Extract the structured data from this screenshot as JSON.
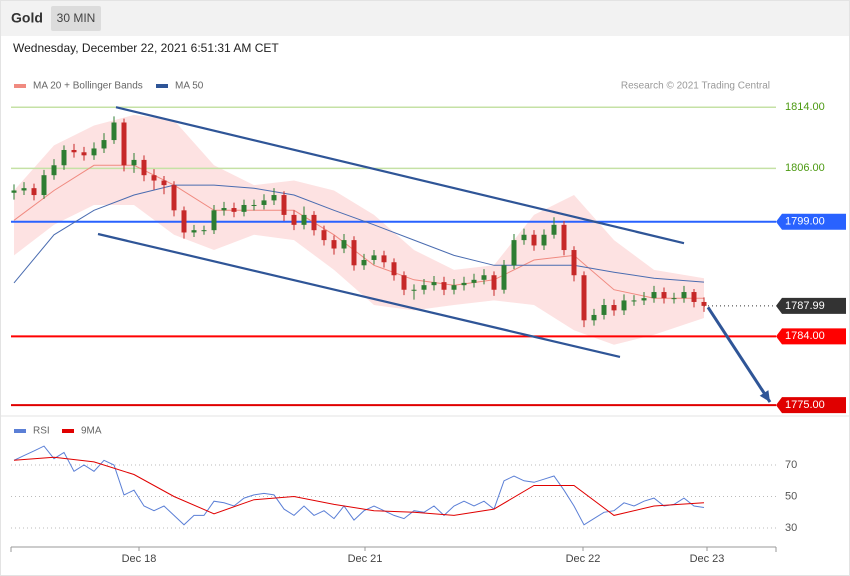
{
  "header": {
    "title": "Gold",
    "interval": "30 MIN",
    "timestamp": "Wednesday, December 22, 2021 6:51:31 AM CET"
  },
  "chart_data": [
    {
      "type": "candlestick",
      "credit": "Research © 2021 Trading Central",
      "up_color": "#2e7d32",
      "down_color": "#c62828",
      "open": [
        1802.8,
        1803.1,
        1803.4,
        1802.5,
        1805.1,
        1806.4,
        1808.4,
        1808.1,
        1807.7,
        1808.6,
        1809.7,
        1812.0,
        1806.4,
        1807.1,
        1805.1,
        1804.4,
        1803.8,
        1800.5,
        1797.6,
        1797.9,
        1797.9,
        1800.5,
        1800.8,
        1800.3,
        1801.2,
        1801.2,
        1801.8,
        1802.5,
        1799.9,
        1798.6,
        1799.9,
        1797.9,
        1796.6,
        1795.5,
        1796.6,
        1793.3,
        1794.0,
        1794.6,
        1793.7,
        1792.0,
        1790.1,
        1790.1,
        1790.7,
        1791.1,
        1790.1,
        1790.7,
        1791.0,
        1791.4,
        1792.0,
        1790.1,
        1793.3,
        1796.6,
        1797.3,
        1795.9,
        1797.3,
        1798.6,
        1795.3,
        1792.0,
        1786.1,
        1786.8,
        1788.1,
        1787.4,
        1788.7,
        1788.7,
        1789.0,
        1789.8,
        1789.0,
        1789.0,
        1789.8,
        1788.5
      ],
      "high": [
        1803.9,
        1804.2,
        1804.0,
        1805.8,
        1807.2,
        1809.0,
        1809.2,
        1808.8,
        1809.4,
        1810.6,
        1812.8,
        1812.5,
        1808.0,
        1807.7,
        1805.9,
        1805.0,
        1804.3,
        1801.0,
        1798.6,
        1798.5,
        1801.2,
        1801.6,
        1801.5,
        1801.9,
        1801.9,
        1802.6,
        1803.4,
        1803.0,
        1800.5,
        1801.0,
        1800.4,
        1798.5,
        1797.2,
        1797.4,
        1797.1,
        1794.8,
        1795.3,
        1795.2,
        1794.2,
        1792.5,
        1790.8,
        1791.5,
        1791.9,
        1791.8,
        1791.5,
        1791.8,
        1792.2,
        1792.8,
        1792.5,
        1794.0,
        1797.4,
        1798.1,
        1797.9,
        1798.0,
        1799.6,
        1799.1,
        1795.8,
        1792.5,
        1787.6,
        1788.9,
        1788.8,
        1789.5,
        1789.4,
        1789.8,
        1790.6,
        1790.4,
        1789.7,
        1790.6,
        1790.2,
        1789.1
      ],
      "low": [
        1801.9,
        1802.5,
        1801.8,
        1802.0,
        1804.5,
        1805.8,
        1807.4,
        1807.0,
        1807.1,
        1808.0,
        1809.2,
        1805.6,
        1805.4,
        1804.3,
        1803.2,
        1802.6,
        1799.7,
        1796.8,
        1797.0,
        1797.3,
        1797.4,
        1799.8,
        1799.6,
        1799.7,
        1800.5,
        1800.6,
        1801.2,
        1799.1,
        1797.9,
        1798.0,
        1797.2,
        1795.9,
        1794.7,
        1794.9,
        1792.6,
        1792.7,
        1793.4,
        1793.0,
        1791.3,
        1789.4,
        1788.8,
        1789.5,
        1790.0,
        1789.4,
        1789.5,
        1790.0,
        1790.4,
        1790.8,
        1789.3,
        1789.6,
        1792.8,
        1796.0,
        1795.2,
        1795.3,
        1796.8,
        1794.6,
        1791.2,
        1785.2,
        1785.4,
        1786.2,
        1786.7,
        1786.8,
        1788.0,
        1788.1,
        1788.4,
        1788.3,
        1788.3,
        1788.4,
        1787.8,
        1787.2
      ],
      "close": [
        1803.1,
        1803.4,
        1802.5,
        1805.1,
        1806.4,
        1808.4,
        1808.1,
        1807.7,
        1808.6,
        1809.7,
        1812.0,
        1806.4,
        1807.1,
        1805.1,
        1804.4,
        1803.8,
        1800.5,
        1797.6,
        1797.9,
        1797.9,
        1800.5,
        1800.8,
        1800.3,
        1801.2,
        1801.2,
        1801.8,
        1802.5,
        1799.9,
        1798.6,
        1799.9,
        1797.9,
        1796.6,
        1795.5,
        1796.6,
        1793.3,
        1794.0,
        1794.6,
        1793.7,
        1792.0,
        1790.1,
        1790.1,
        1790.7,
        1791.1,
        1790.1,
        1790.7,
        1791.0,
        1791.4,
        1792.0,
        1790.1,
        1793.3,
        1796.6,
        1797.3,
        1795.9,
        1797.3,
        1798.6,
        1795.3,
        1792.0,
        1786.1,
        1786.8,
        1788.1,
        1787.4,
        1788.7,
        1788.7,
        1789.0,
        1789.8,
        1789.0,
        1789.0,
        1789.8,
        1788.5,
        1787.99
      ],
      "series": [
        {
          "name": "MA 20 + Bollinger Bands",
          "color": "#f08a80",
          "band_color": "#fde2e2",
          "x": [
            0,
            4,
            8,
            12,
            16,
            20,
            24,
            28,
            32,
            36,
            40,
            44,
            48,
            52,
            56,
            60,
            64,
            69
          ],
          "values": [
            1799.2,
            1803.1,
            1806.4,
            1806.4,
            1803.8,
            1800.5,
            1800.5,
            1800.5,
            1797.3,
            1793.3,
            1791.4,
            1790.7,
            1791.4,
            1794.0,
            1794.6,
            1790.1,
            1789.0,
            1789.0
          ],
          "band_upper": [
            1803.1,
            1809.0,
            1811.6,
            1813.0,
            1812.3,
            1806.4,
            1803.8,
            1804.4,
            1803.1,
            1799.9,
            1795.3,
            1792.7,
            1793.3,
            1799.9,
            1802.5,
            1796.6,
            1792.7,
            1791.6
          ],
          "band_lower": [
            1794.6,
            1798.6,
            1801.2,
            1801.2,
            1797.3,
            1795.3,
            1797.3,
            1796.6,
            1792.7,
            1788.1,
            1787.4,
            1788.1,
            1788.7,
            1788.1,
            1784.8,
            1782.9,
            1784.2,
            1786.4
          ]
        },
        {
          "name": "MA 50",
          "color": "#4a6cb0",
          "x": [
            0,
            4,
            8,
            12,
            16,
            20,
            24,
            28,
            32,
            36,
            40,
            44,
            48,
            52,
            56,
            60,
            64,
            69
          ],
          "values": [
            1791.0,
            1797.3,
            1800.5,
            1802.5,
            1803.8,
            1803.8,
            1803.4,
            1802.5,
            1800.5,
            1798.6,
            1796.6,
            1794.6,
            1793.3,
            1793.3,
            1793.3,
            1792.4,
            1791.6,
            1791.1
          ]
        }
      ],
      "levels": [
        {
          "value": 1814,
          "label": "1814.00",
          "color": "#c5e1a5",
          "text_color": "#4c9a12",
          "boxed": false
        },
        {
          "value": 1806,
          "label": "1806.00",
          "color": "#c5e1a5",
          "text_color": "#4c9a12",
          "boxed": false
        },
        {
          "value": 1799,
          "label": "1799.00",
          "color": "#2962ff",
          "text_color": "#ffffff",
          "boxed": true
        },
        {
          "value": 1787.99,
          "label": "1787.99",
          "color": "#333333",
          "text_color": "#ffffff",
          "boxed": true,
          "dotted": true
        },
        {
          "value": 1784,
          "label": "1784.00",
          "color": "#ff0000",
          "text_color": "#ffffff",
          "boxed": true
        },
        {
          "value": 1775,
          "label": "1775.00",
          "color": "#e00000",
          "text_color": "#ffffff",
          "boxed": true
        }
      ],
      "annotations": [
        {
          "x1": 10.2,
          "y1": 1814,
          "x2": 67,
          "y2": 1796.2,
          "color": "#2f5597"
        },
        {
          "x1": 8.4,
          "y1": 1797.4,
          "x2": 60.6,
          "y2": 1781.3,
          "color": "#2f5597"
        },
        {
          "x1": 69.4,
          "y1": 1787.8,
          "x2": 75.6,
          "y2": 1775.4,
          "color": "#2f5597",
          "arrow": true
        }
      ],
      "xlim": [
        -0.3,
        76.2
      ],
      "ylim": [
        1773.7,
        1815.6
      ]
    },
    {
      "type": "line",
      "series": [
        {
          "name": "RSI",
          "color": "#5b7fd6",
          "values": [
            73,
            76,
            79,
            82,
            74,
            78,
            66,
            70,
            66,
            73,
            70,
            51,
            54,
            44,
            41,
            44,
            38,
            32,
            38,
            38,
            47,
            46,
            44,
            49,
            51,
            52,
            51,
            42,
            38,
            44,
            38,
            41,
            36,
            44,
            35,
            41,
            44,
            41,
            38,
            36,
            41,
            40,
            44,
            38,
            44,
            47,
            44,
            47,
            42,
            60,
            63,
            60,
            59,
            61,
            63,
            54,
            44,
            32,
            36,
            40,
            41,
            46,
            44,
            47,
            49,
            44,
            45,
            49,
            44,
            43
          ]
        },
        {
          "name": "9MA",
          "color": "#e00000",
          "x": [
            0,
            4,
            8,
            12,
            16,
            20,
            24,
            28,
            32,
            36,
            40,
            44,
            48,
            52,
            56,
            60,
            64,
            69
          ],
          "values": [
            73,
            75,
            72,
            64,
            50,
            39,
            48,
            50,
            45,
            41,
            40,
            38,
            42,
            57,
            57,
            38,
            44,
            46
          ]
        }
      ],
      "xlim": [
        -0.3,
        76.2
      ],
      "ylim": [
        19.2,
        98.6
      ],
      "yticks": [
        30,
        50,
        70
      ],
      "xticks": [
        {
          "value": 12.5,
          "label": "Dec 18"
        },
        {
          "value": 35.1,
          "label": "Dec 21"
        },
        {
          "value": 56.9,
          "label": "Dec 22"
        },
        {
          "value": 69.3,
          "label": "Dec 23"
        }
      ]
    }
  ]
}
